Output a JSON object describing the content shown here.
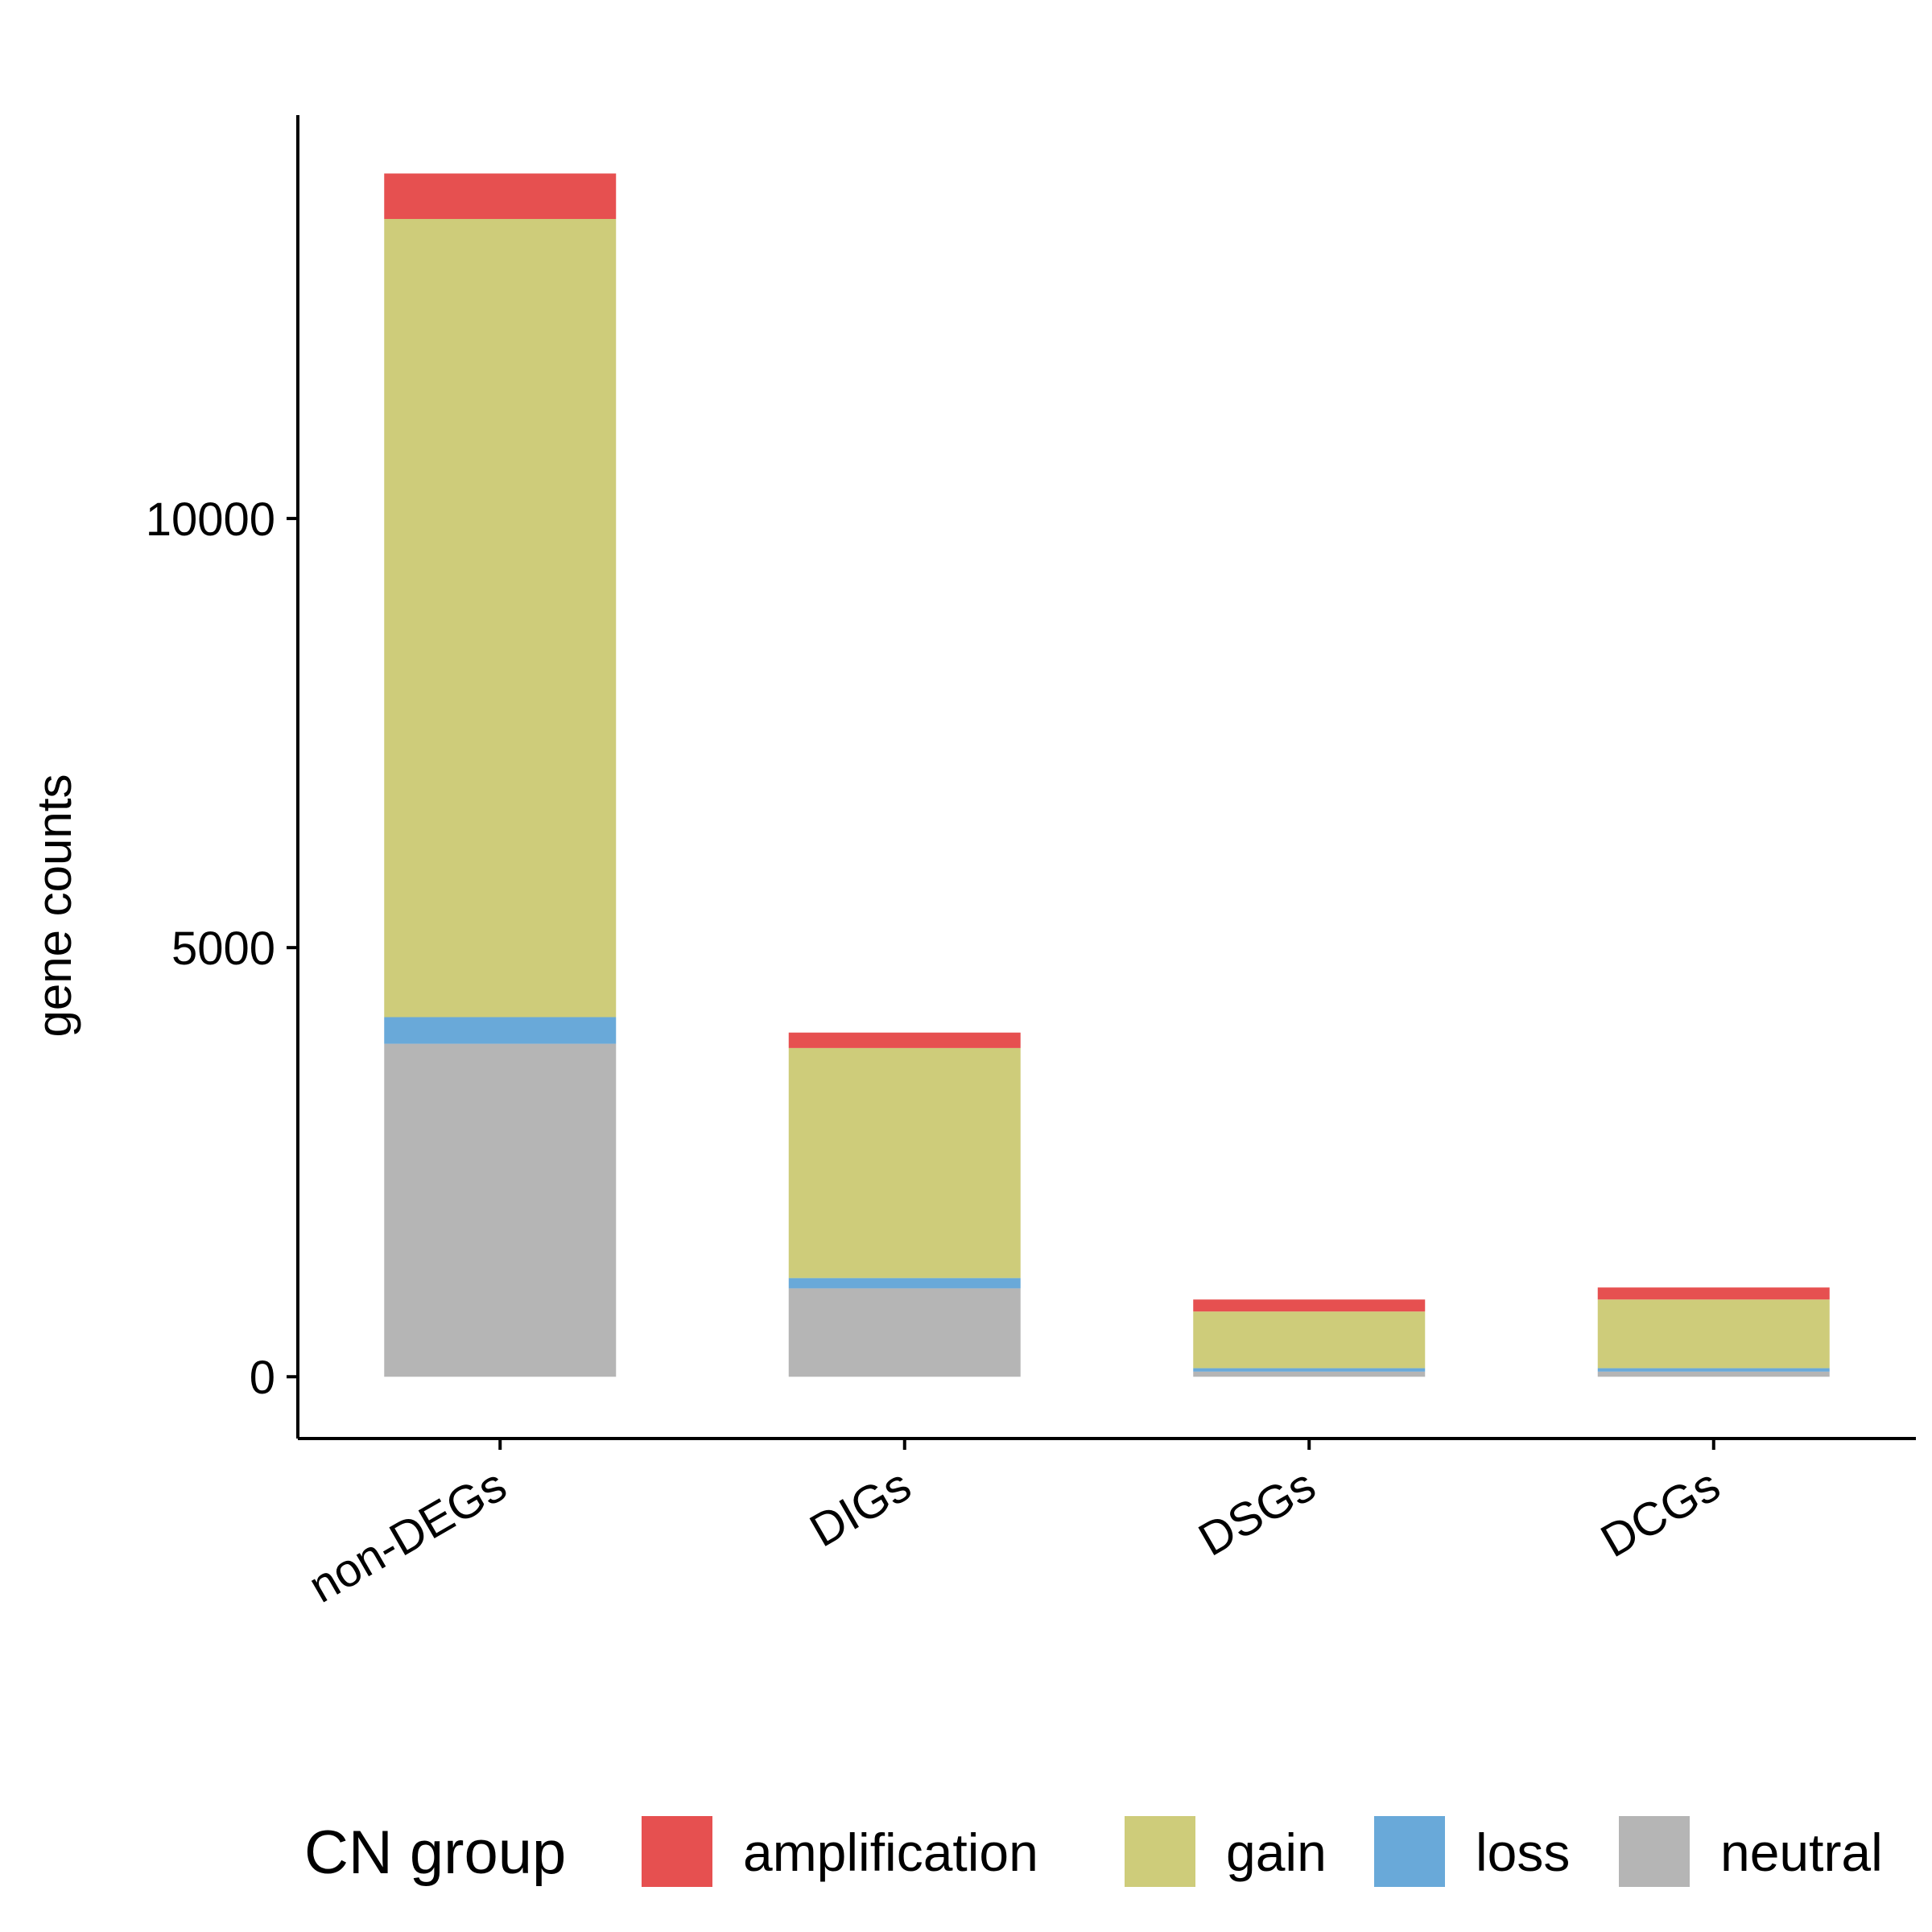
{
  "chart_data": {
    "type": "bar",
    "stacked": true,
    "categories": [
      "non-DEGs",
      "DIGs",
      "DSGs",
      "DCGs"
    ],
    "series": [
      {
        "name": "neutral",
        "color": "#B5B5B5",
        "values": [
          3880,
          1030,
          60,
          60
        ]
      },
      {
        "name": "loss",
        "color": "#69A9D9",
        "values": [
          310,
          120,
          40,
          40
        ]
      },
      {
        "name": "gain",
        "color": "#CECC7A",
        "values": [
          9300,
          2680,
          660,
          800
        ]
      },
      {
        "name": "amplification",
        "color": "#E65050",
        "values": [
          530,
          180,
          140,
          140
        ]
      }
    ],
    "stack_order_bottom_to_top": [
      "neutral",
      "loss",
      "gain",
      "amplification"
    ],
    "title": "",
    "xlabel": "",
    "ylabel": "gene counts",
    "yticks": [
      0,
      5000,
      10000
    ],
    "ylim": [
      -720,
      14700
    ],
    "grid": false,
    "legend": {
      "title": "CN group",
      "position": "bottom",
      "order": [
        "amplification",
        "gain",
        "loss",
        "neutral"
      ]
    }
  }
}
